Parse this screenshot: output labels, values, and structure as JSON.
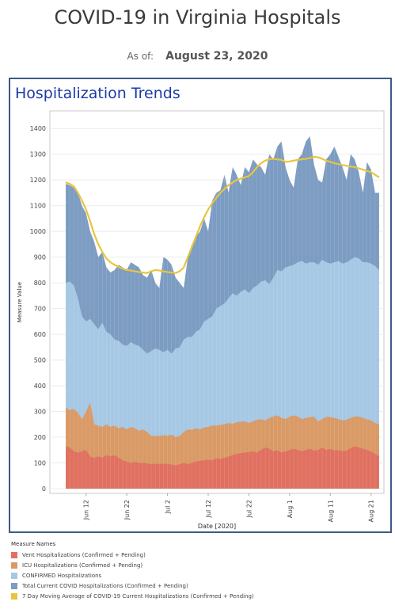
{
  "page": {
    "title": "COVID-19 in Virginia Hospitals",
    "as_of_label": "As of:",
    "as_of_date": "August 23, 2020"
  },
  "panel": {
    "title": "Hospitalization Trends"
  },
  "legend": {
    "title": "Measure Names",
    "items": [
      {
        "label": "Vent Hospitalizations (Confirmed + Pending)",
        "color": "#e07060"
      },
      {
        "label": "ICU Hospitalizations (Confirmed + Pending)",
        "color": "#d99a66"
      },
      {
        "label": "CONFIRMED Hospitalizations",
        "color": "#a6c8e4"
      },
      {
        "label": "Total Current COVID Hospitalizations (Confirmed + Pending)",
        "color": "#7d9cc2"
      },
      {
        "label": "7 Day Moving Average of COVID-19 Current Hospitalizations (Confirmed + Pending)",
        "color": "#e8c53f"
      }
    ]
  },
  "chart_data": {
    "type": "area",
    "xlabel": "Date [2020]",
    "ylabel": "Measure Value",
    "ylim": [
      0,
      1450
    ],
    "yticks": [
      0,
      100,
      200,
      300,
      400,
      500,
      600,
      700,
      800,
      900,
      1000,
      1100,
      1200,
      1300,
      1400
    ],
    "xticks": [
      "Jun 12",
      "Jun 22",
      "Jul 2",
      "Jul 12",
      "Jul 22",
      "Aug 1",
      "Aug 11",
      "Aug 21"
    ],
    "x": [
      "Jun 7",
      "Jun 8",
      "Jun 9",
      "Jun 10",
      "Jun 11",
      "Jun 12",
      "Jun 13",
      "Jun 14",
      "Jun 15",
      "Jun 16",
      "Jun 17",
      "Jun 18",
      "Jun 19",
      "Jun 20",
      "Jun 21",
      "Jun 22",
      "Jun 23",
      "Jun 24",
      "Jun 25",
      "Jun 26",
      "Jun 27",
      "Jun 28",
      "Jun 29",
      "Jun 30",
      "Jul 1",
      "Jul 2",
      "Jul 3",
      "Jul 4",
      "Jul 5",
      "Jul 6",
      "Jul 7",
      "Jul 8",
      "Jul 9",
      "Jul 10",
      "Jul 11",
      "Jul 12",
      "Jul 13",
      "Jul 14",
      "Jul 15",
      "Jul 16",
      "Jul 17",
      "Jul 18",
      "Jul 19",
      "Jul 20",
      "Jul 21",
      "Jul 22",
      "Jul 23",
      "Jul 24",
      "Jul 25",
      "Jul 26",
      "Jul 27",
      "Jul 28",
      "Jul 29",
      "Jul 30",
      "Jul 31",
      "Aug 1",
      "Aug 2",
      "Aug 3",
      "Aug 4",
      "Aug 5",
      "Aug 6",
      "Aug 7",
      "Aug 8",
      "Aug 9",
      "Aug 10",
      "Aug 11",
      "Aug 12",
      "Aug 13",
      "Aug 14",
      "Aug 15",
      "Aug 16",
      "Aug 17",
      "Aug 18",
      "Aug 19",
      "Aug 20",
      "Aug 21",
      "Aug 22",
      "Aug 23"
    ],
    "series": [
      {
        "name": "Vent Hospitalizations (Confirmed + Pending)",
        "color": "#e07060",
        "values": [
          165,
          160,
          145,
          140,
          145,
          150,
          125,
          120,
          125,
          120,
          130,
          125,
          130,
          120,
          110,
          105,
          100,
          105,
          100,
          100,
          98,
          95,
          97,
          96,
          97,
          96,
          94,
          90,
          95,
          100,
          95,
          100,
          105,
          108,
          110,
          112,
          110,
          118,
          115,
          120,
          125,
          130,
          135,
          138,
          140,
          142,
          145,
          140,
          150,
          160,
          155,
          145,
          150,
          140,
          145,
          150,
          155,
          150,
          145,
          150,
          155,
          148,
          150,
          160,
          150,
          155,
          148,
          150,
          145,
          148,
          158,
          165,
          160,
          155,
          150,
          145,
          135,
          125
        ]
      },
      {
        "name": "ICU Hospitalizations (Confirmed + Pending)",
        "color": "#d99a66",
        "values": [
          315,
          305,
          310,
          295,
          270,
          300,
          335,
          250,
          245,
          240,
          250,
          240,
          245,
          235,
          240,
          230,
          240,
          235,
          225,
          230,
          220,
          205,
          205,
          205,
          208,
          205,
          210,
          200,
          205,
          220,
          230,
          228,
          235,
          230,
          238,
          240,
          245,
          245,
          248,
          250,
          255,
          252,
          258,
          260,
          262,
          255,
          262,
          268,
          270,
          265,
          275,
          280,
          285,
          275,
          270,
          280,
          285,
          280,
          270,
          275,
          278,
          280,
          260,
          270,
          280,
          278,
          275,
          270,
          265,
          268,
          275,
          280,
          280,
          275,
          270,
          265,
          255,
          250
        ]
      },
      {
        "name": "CONFIRMED Hospitalizations",
        "color": "#a6c8e4",
        "values": [
          800,
          805,
          790,
          740,
          670,
          650,
          660,
          640,
          620,
          645,
          610,
          600,
          580,
          575,
          560,
          555,
          570,
          560,
          555,
          540,
          525,
          535,
          545,
          540,
          530,
          540,
          525,
          545,
          550,
          580,
          590,
          590,
          610,
          620,
          650,
          660,
          670,
          700,
          710,
          720,
          740,
          760,
          750,
          765,
          775,
          760,
          780,
          790,
          805,
          810,
          795,
          820,
          850,
          845,
          860,
          865,
          870,
          880,
          885,
          875,
          880,
          880,
          870,
          890,
          880,
          875,
          880,
          885,
          875,
          880,
          890,
          900,
          895,
          880,
          880,
          875,
          865,
          850
        ]
      },
      {
        "name": "Total Current COVID Hospitalizations (Confirmed + Pending)",
        "color": "#7d9cc2",
        "values": [
          1185,
          1180,
          1170,
          1150,
          1100,
          1070,
          1000,
          960,
          900,
          920,
          860,
          840,
          850,
          870,
          860,
          850,
          880,
          870,
          860,
          830,
          820,
          850,
          800,
          780,
          900,
          890,
          870,
          820,
          800,
          780,
          900,
          950,
          980,
          1000,
          1050,
          1000,
          1120,
          1150,
          1160,
          1220,
          1150,
          1250,
          1220,
          1180,
          1250,
          1230,
          1280,
          1260,
          1250,
          1220,
          1300,
          1280,
          1330,
          1350,
          1250,
          1200,
          1170,
          1280,
          1300,
          1350,
          1370,
          1260,
          1200,
          1190,
          1280,
          1300,
          1330,
          1290,
          1250,
          1200,
          1300,
          1280,
          1230,
          1150,
          1270,
          1240,
          1150,
          1150
        ]
      },
      {
        "name": "7 Day Moving Average of COVID-19 Current Hospitalizations (Confirmed + Pending)",
        "color": "#e8c53f",
        "values": [
          1190,
          1185,
          1175,
          1150,
          1120,
          1085,
          1040,
          990,
          950,
          920,
          895,
          880,
          870,
          862,
          855,
          850,
          848,
          845,
          842,
          840,
          838,
          845,
          850,
          848,
          845,
          842,
          840,
          838,
          845,
          860,
          900,
          940,
          980,
          1020,
          1055,
          1085,
          1110,
          1130,
          1150,
          1165,
          1180,
          1190,
          1200,
          1205,
          1210,
          1215,
          1230,
          1250,
          1265,
          1275,
          1280,
          1282,
          1280,
          1278,
          1270,
          1272,
          1275,
          1278,
          1280,
          1282,
          1285,
          1290,
          1288,
          1282,
          1275,
          1270,
          1265,
          1262,
          1258,
          1255,
          1252,
          1250,
          1245,
          1240,
          1235,
          1230,
          1220,
          1210
        ]
      }
    ]
  }
}
